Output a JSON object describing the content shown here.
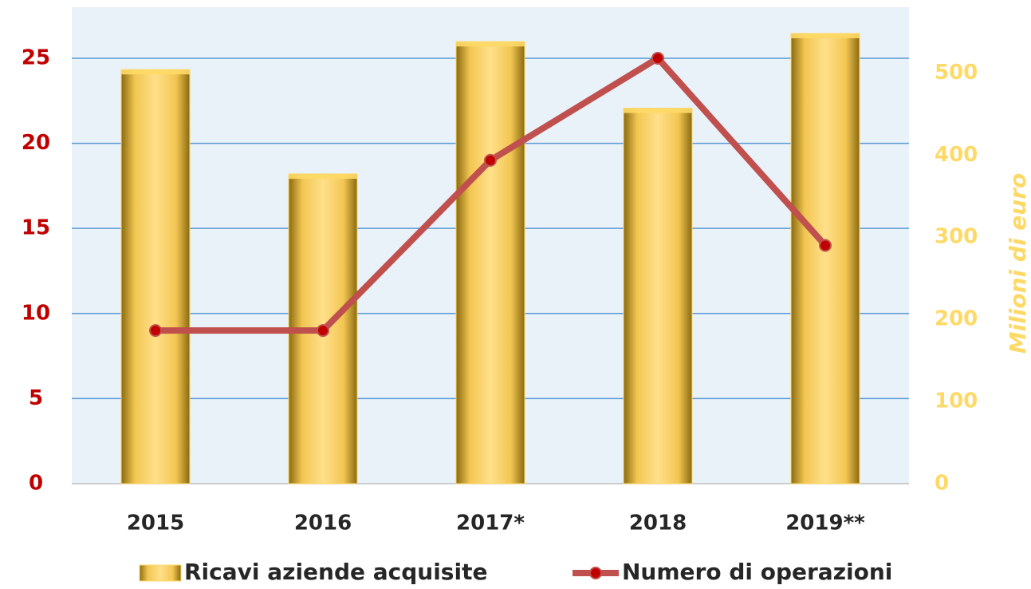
{
  "chart_data": {
    "type": "bar-line",
    "categories": [
      "2015",
      "2016",
      "2017*",
      "2018",
      "2019**"
    ],
    "series": [
      {
        "name": "Ricavi aziende acquisite",
        "type": "bar",
        "axis": "y2",
        "color": "#ffd966",
        "values": [
          504,
          377,
          538,
          457,
          548
        ]
      },
      {
        "name": "Numero di operazioni",
        "type": "line",
        "axis": "y",
        "color": "#c0504d",
        "values": [
          9,
          9,
          19,
          25,
          14
        ]
      }
    ],
    "ylim": [
      0,
      28
    ],
    "yticks": [
      0,
      5,
      10,
      15,
      20,
      25
    ],
    "y2lim": [
      0,
      580
    ],
    "y2ticks": [
      0,
      100,
      200,
      300,
      400,
      500
    ],
    "y2label": "Milioni di euro",
    "grid": true,
    "legend": "bottom"
  }
}
